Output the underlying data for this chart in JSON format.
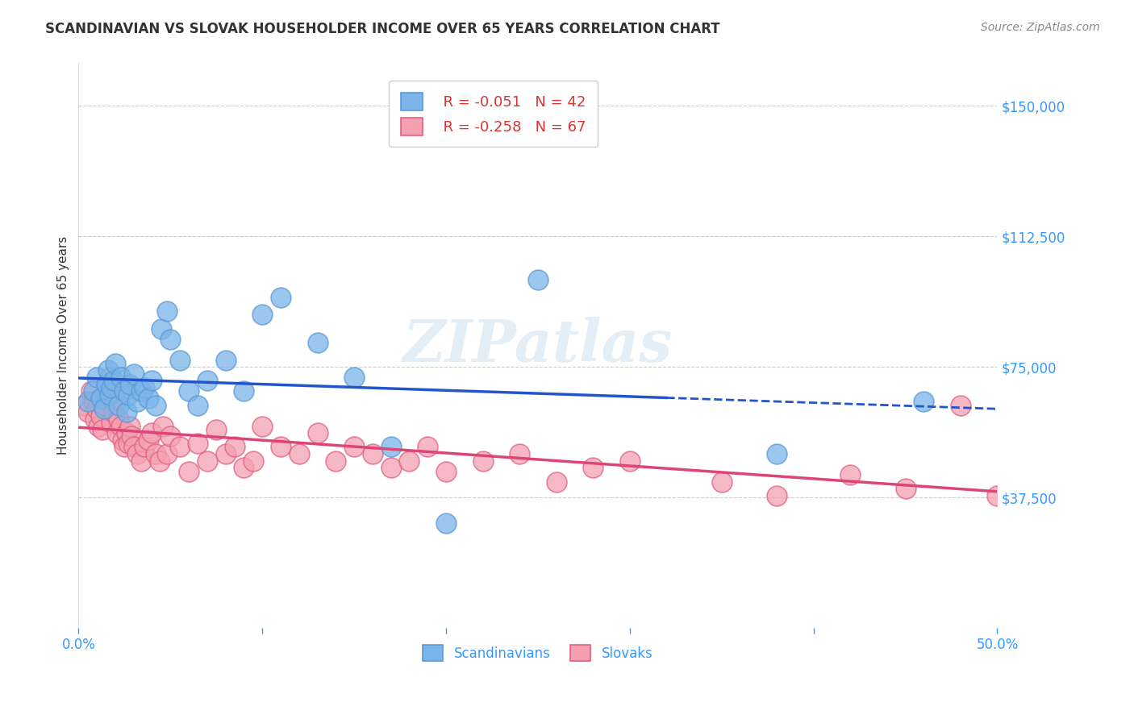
{
  "title": "SCANDINAVIAN VS SLOVAK HOUSEHOLDER INCOME OVER 65 YEARS CORRELATION CHART",
  "source": "Source: ZipAtlas.com",
  "ylabel": "Householder Income Over 65 years",
  "xlim": [
    0.0,
    0.5
  ],
  "ylim": [
    0,
    162500
  ],
  "yticks": [
    37500,
    75000,
    112500,
    150000
  ],
  "ytick_labels": [
    "$37,500",
    "$75,000",
    "$112,500",
    "$150,000"
  ],
  "xticks": [
    0.0,
    0.1,
    0.2,
    0.3,
    0.4,
    0.5
  ],
  "xtick_labels": [
    "0.0%",
    "",
    "",
    "",
    "",
    "50.0%"
  ],
  "background_color": "#ffffff",
  "grid_color": "#cccccc",
  "scand_color": "#7ab4e8",
  "scand_edge_color": "#5a9ad8",
  "slovak_color": "#f4a0b0",
  "slovak_edge_color": "#e06080",
  "line_blue": "#2255cc",
  "line_pink": "#dd4477",
  "legend_R_scand": "R = -0.051",
  "legend_N_scand": "N = 42",
  "legend_R_slovak": "R = -0.258",
  "legend_N_slovak": "N = 67",
  "watermark": "ZIPatlas",
  "scand_x": [
    0.005,
    0.008,
    0.01,
    0.012,
    0.014,
    0.015,
    0.016,
    0.017,
    0.018,
    0.019,
    0.02,
    0.022,
    0.023,
    0.025,
    0.026,
    0.027,
    0.028,
    0.03,
    0.032,
    0.034,
    0.036,
    0.038,
    0.04,
    0.042,
    0.045,
    0.048,
    0.05,
    0.055,
    0.06,
    0.065,
    0.07,
    0.08,
    0.09,
    0.1,
    0.11,
    0.13,
    0.15,
    0.17,
    0.2,
    0.25,
    0.38,
    0.46
  ],
  "scand_y": [
    65000,
    68000,
    72000,
    66000,
    63000,
    70000,
    74000,
    67000,
    69000,
    71000,
    76000,
    64000,
    72000,
    68000,
    62000,
    67000,
    70000,
    73000,
    65000,
    68000,
    69000,
    66000,
    71000,
    64000,
    86000,
    91000,
    83000,
    77000,
    68000,
    64000,
    71000,
    77000,
    68000,
    90000,
    95000,
    82000,
    72000,
    52000,
    30000,
    100000,
    50000,
    65000
  ],
  "slovak_x": [
    0.003,
    0.005,
    0.007,
    0.008,
    0.009,
    0.01,
    0.011,
    0.012,
    0.013,
    0.014,
    0.015,
    0.016,
    0.017,
    0.018,
    0.019,
    0.02,
    0.021,
    0.022,
    0.023,
    0.024,
    0.025,
    0.026,
    0.027,
    0.028,
    0.029,
    0.03,
    0.032,
    0.034,
    0.036,
    0.038,
    0.04,
    0.042,
    0.044,
    0.046,
    0.048,
    0.05,
    0.055,
    0.06,
    0.065,
    0.07,
    0.075,
    0.08,
    0.085,
    0.09,
    0.095,
    0.1,
    0.11,
    0.12,
    0.13,
    0.14,
    0.15,
    0.16,
    0.17,
    0.18,
    0.19,
    0.2,
    0.22,
    0.24,
    0.26,
    0.28,
    0.3,
    0.35,
    0.38,
    0.42,
    0.45,
    0.48,
    0.5
  ],
  "slovak_y": [
    64000,
    62000,
    68000,
    65000,
    60000,
    63000,
    58000,
    61000,
    57000,
    64000,
    70000,
    67000,
    72000,
    59000,
    62000,
    65000,
    56000,
    60000,
    58000,
    54000,
    52000,
    56000,
    53000,
    58000,
    55000,
    52000,
    50000,
    48000,
    52000,
    54000,
    56000,
    50000,
    48000,
    58000,
    50000,
    55000,
    52000,
    45000,
    53000,
    48000,
    57000,
    50000,
    52000,
    46000,
    48000,
    58000,
    52000,
    50000,
    56000,
    48000,
    52000,
    50000,
    46000,
    48000,
    52000,
    45000,
    48000,
    50000,
    42000,
    46000,
    48000,
    42000,
    38000,
    44000,
    40000,
    64000,
    38000
  ]
}
